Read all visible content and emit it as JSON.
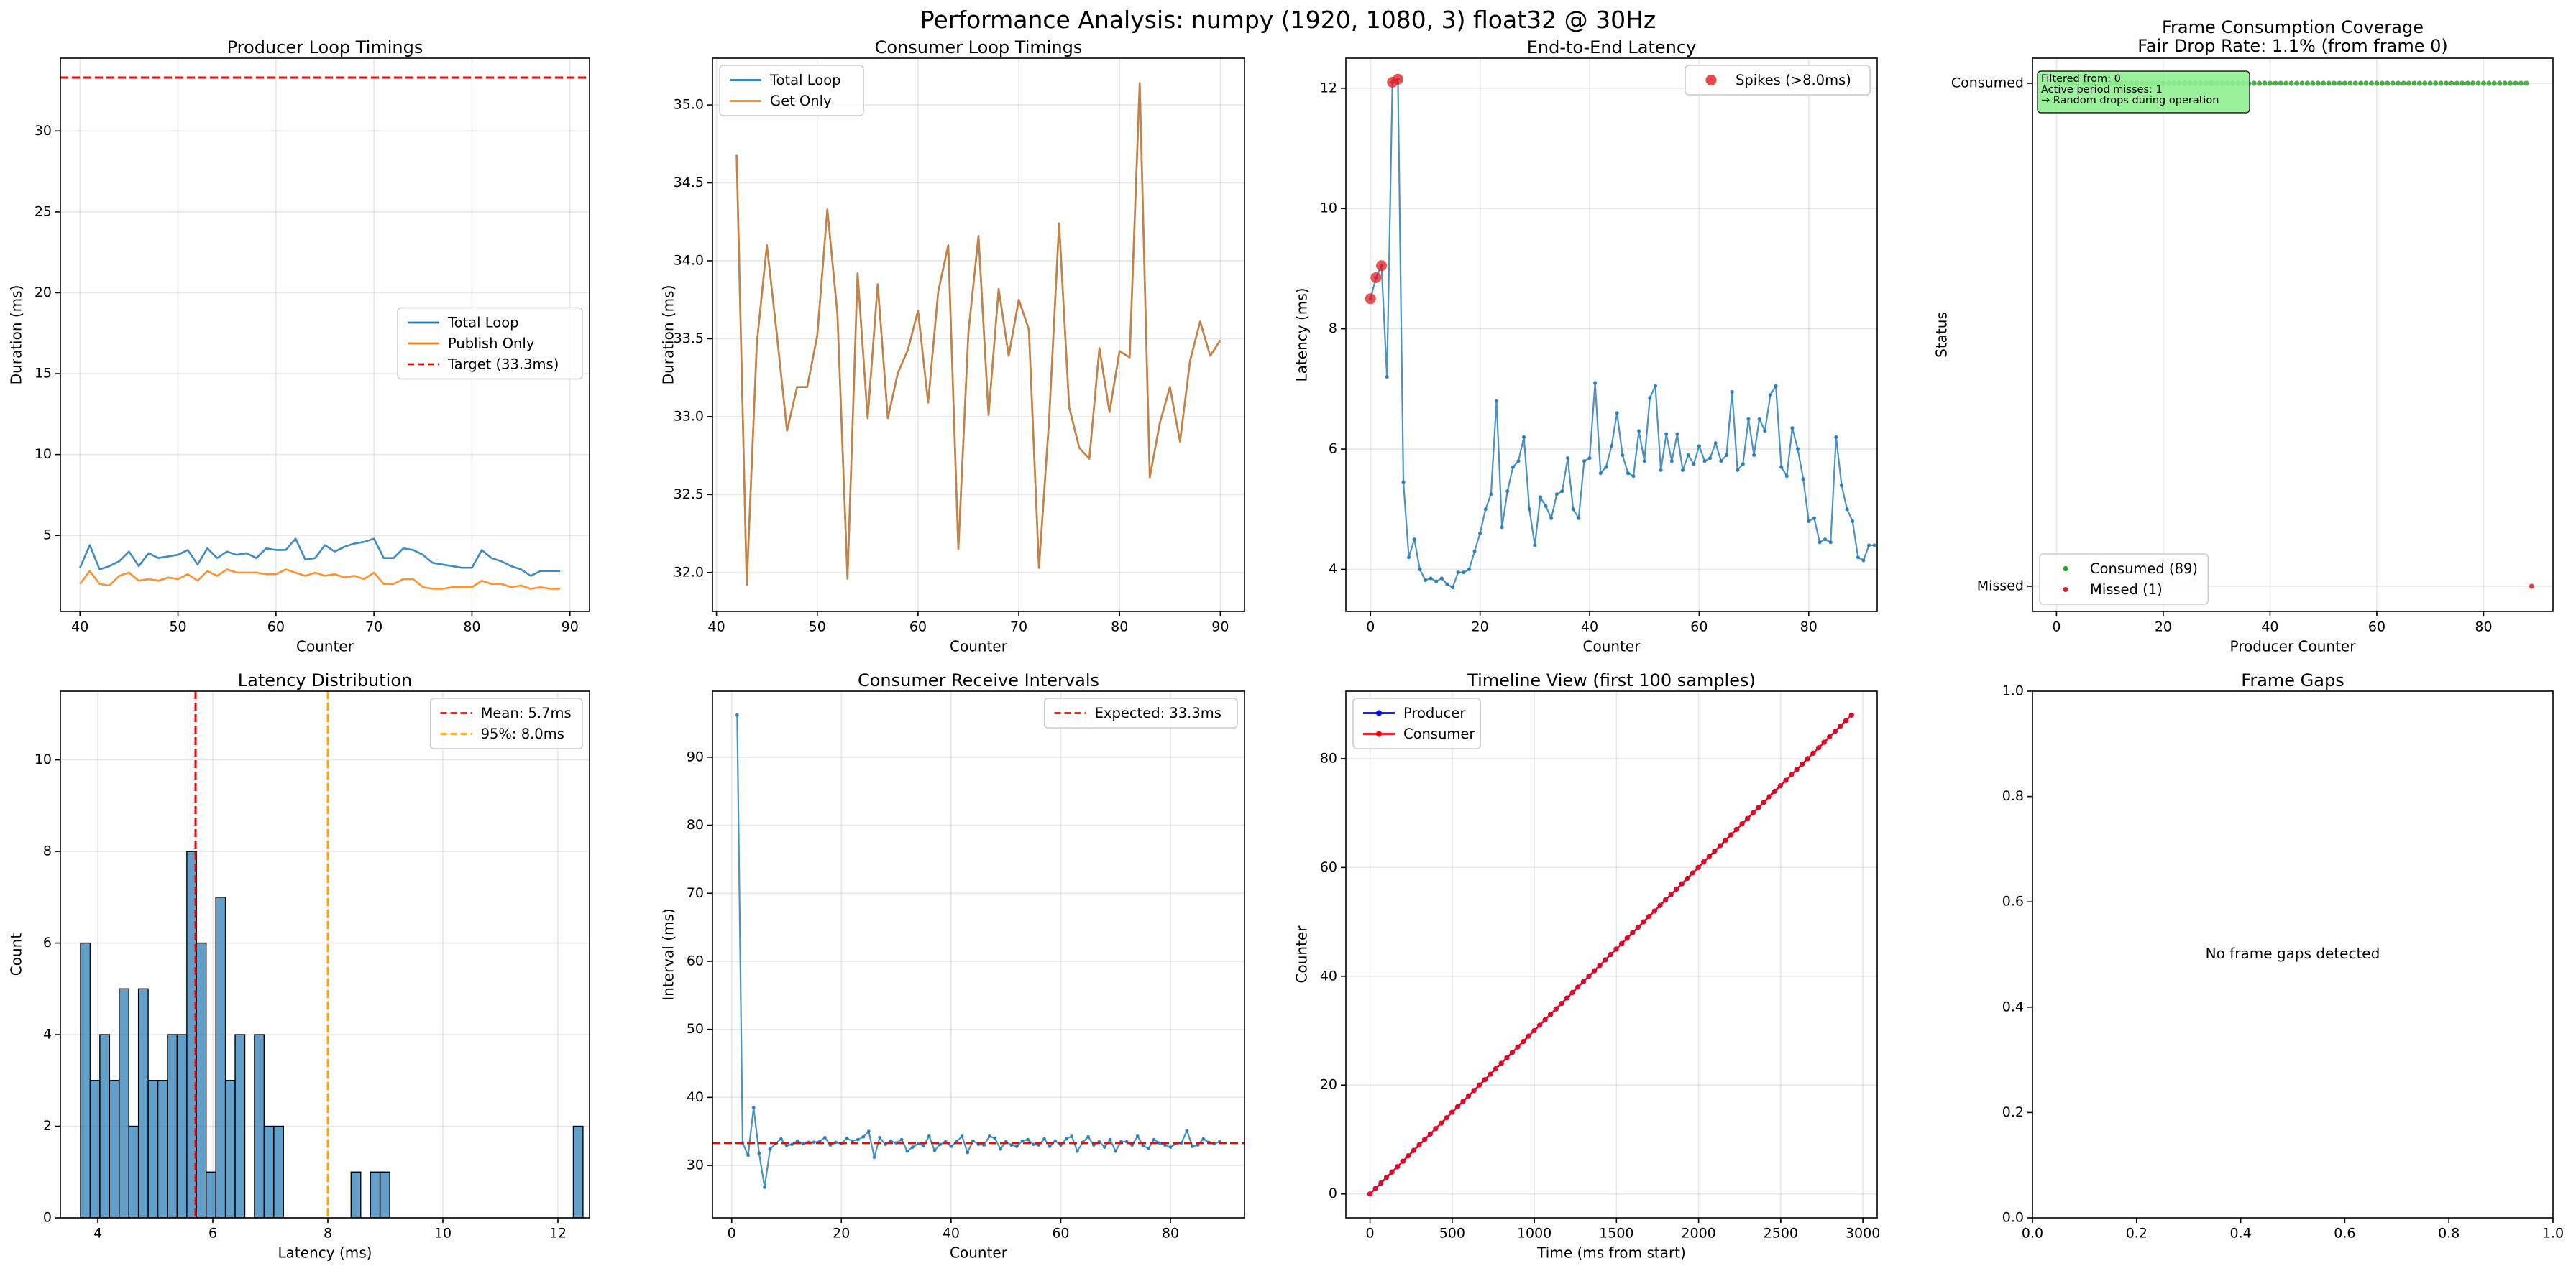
{
  "figure": {
    "suptitle": "Performance Analysis: numpy (1920, 1080, 3) float32 @ 30Hz"
  },
  "chart_data": [
    {
      "id": "producer",
      "type": "line",
      "title": "Producer Loop Timings",
      "xlabel": "Counter",
      "ylabel": "Duration (ms)",
      "xlim": [
        38,
        92
      ],
      "ylim": [
        0.3,
        34.5
      ],
      "xticks": [
        40,
        50,
        60,
        70,
        80,
        90
      ],
      "yticks": [
        5,
        10,
        15,
        20,
        25,
        30
      ],
      "grid": true,
      "legend_position": "center-right",
      "x": [
        40,
        41,
        42,
        43,
        44,
        45,
        46,
        47,
        48,
        49,
        50,
        51,
        52,
        53,
        54,
        55,
        56,
        57,
        58,
        59,
        60,
        61,
        62,
        63,
        64,
        65,
        66,
        67,
        68,
        69,
        70,
        71,
        72,
        73,
        74,
        75,
        76,
        77,
        78,
        79,
        80,
        81,
        82,
        83,
        84,
        85,
        86,
        87,
        88,
        89
      ],
      "series": [
        {
          "name": "Total Loop",
          "color": "#1f77b4",
          "values": [
            3.0,
            4.4,
            2.9,
            3.1,
            3.4,
            4.0,
            3.1,
            3.9,
            3.6,
            3.7,
            3.8,
            4.1,
            3.2,
            4.2,
            3.6,
            4.0,
            3.8,
            3.9,
            3.6,
            4.2,
            4.1,
            4.1,
            4.8,
            3.5,
            3.6,
            4.4,
            4.0,
            4.3,
            4.5,
            4.6,
            4.8,
            3.6,
            3.6,
            4.2,
            4.1,
            3.8,
            3.3,
            3.2,
            3.1,
            3.0,
            3.0,
            4.1,
            3.6,
            3.4,
            3.1,
            2.9,
            2.5,
            2.8,
            2.8,
            2.8
          ]
        },
        {
          "name": "Publish Only",
          "color": "#ff7f0e",
          "values": [
            2.0,
            2.8,
            2.0,
            1.9,
            2.5,
            2.7,
            2.2,
            2.3,
            2.2,
            2.4,
            2.3,
            2.6,
            2.2,
            2.8,
            2.5,
            2.9,
            2.7,
            2.7,
            2.7,
            2.6,
            2.6,
            2.9,
            2.7,
            2.5,
            2.7,
            2.5,
            2.6,
            2.4,
            2.5,
            2.3,
            2.7,
            2.0,
            2.0,
            2.3,
            2.3,
            1.8,
            1.7,
            1.7,
            1.8,
            1.8,
            1.8,
            2.2,
            2.0,
            2.0,
            1.8,
            1.9,
            1.7,
            1.8,
            1.7,
            1.7
          ]
        }
      ],
      "hlines": [
        {
          "name": "Target (33.3ms)",
          "y": 33.3,
          "color": "#ff0000",
          "dashed": true
        }
      ]
    },
    {
      "id": "consumer",
      "type": "line",
      "title": "Consumer Loop Timings",
      "xlabel": "Counter",
      "ylabel": "Duration (ms)",
      "xlim": [
        39.6,
        92.4
      ],
      "ylim": [
        31.75,
        35.3
      ],
      "xticks": [
        40,
        50,
        60,
        70,
        80,
        90
      ],
      "yticks": [
        32.0,
        32.5,
        33.0,
        33.5,
        34.0,
        34.5,
        35.0
      ],
      "ytick_labels": [
        "32.0",
        "32.5",
        "33.0",
        "33.5",
        "34.0",
        "34.5",
        "35.0"
      ],
      "grid": true,
      "legend_position": "top-left",
      "x": [
        42,
        43,
        44,
        45,
        46,
        47,
        48,
        49,
        50,
        51,
        52,
        53,
        54,
        55,
        56,
        57,
        58,
        59,
        60,
        61,
        62,
        63,
        64,
        65,
        66,
        67,
        68,
        69,
        70,
        71,
        72,
        73,
        74,
        75,
        76,
        77,
        78,
        79,
        80,
        81,
        82,
        83,
        84,
        85,
        86,
        87,
        88,
        89,
        90
      ],
      "series": [
        {
          "name": "Total Loop",
          "color": "#1f77b4",
          "values": [
            34.68,
            31.92,
            33.47,
            34.1,
            33.52,
            32.91,
            33.19,
            33.19,
            33.52,
            34.33,
            33.66,
            31.96,
            33.92,
            32.99,
            33.85,
            32.99,
            33.28,
            33.43,
            33.68,
            33.09,
            33.8,
            34.1,
            32.15,
            33.54,
            34.16,
            33.01,
            33.82,
            33.39,
            33.75,
            33.56,
            32.03,
            32.97,
            34.24,
            33.06,
            32.8,
            32.73,
            33.44,
            33.03,
            33.42,
            33.38,
            35.14,
            32.61,
            32.96,
            33.19,
            32.84,
            33.36,
            33.61,
            33.39,
            33.49
          ]
        },
        {
          "name": "Get Only",
          "color": "#ff7f0e",
          "values": [
            34.68,
            31.92,
            33.47,
            34.1,
            33.52,
            32.91,
            33.19,
            33.19,
            33.52,
            34.33,
            33.66,
            31.96,
            33.92,
            32.99,
            33.85,
            32.99,
            33.28,
            33.43,
            33.68,
            33.09,
            33.8,
            34.1,
            32.15,
            33.54,
            34.16,
            33.01,
            33.82,
            33.39,
            33.75,
            33.56,
            32.03,
            32.97,
            34.24,
            33.06,
            32.8,
            32.73,
            33.44,
            33.03,
            33.42,
            33.38,
            35.14,
            32.61,
            32.96,
            33.19,
            32.84,
            33.36,
            33.61,
            33.39,
            33.49
          ]
        }
      ]
    },
    {
      "id": "latency",
      "type": "line",
      "title": "End-to-End Latency",
      "xlabel": "Counter",
      "ylabel": "Latency (ms)",
      "xlim": [
        -4.5,
        92.5
      ],
      "ylim": [
        3.3,
        12.5
      ],
      "xticks": [
        0,
        20,
        40,
        60,
        80
      ],
      "yticks": [
        4,
        6,
        8,
        10,
        12
      ],
      "grid": true,
      "legend_position": "top-right",
      "series": [
        {
          "name": "Latency",
          "color": "#1f77b4",
          "values": [
            8.5,
            8.85,
            9.05,
            7.2,
            12.1,
            12.15,
            5.45,
            4.2,
            4.5,
            4.0,
            3.82,
            3.85,
            3.8,
            3.85,
            3.75,
            3.7,
            3.95,
            3.95,
            4.0,
            4.3,
            4.6,
            5.0,
            5.25,
            6.8,
            4.7,
            5.3,
            5.7,
            5.8,
            6.2,
            5.0,
            4.4,
            5.2,
            5.05,
            4.85,
            5.25,
            5.3,
            5.85,
            5.0,
            4.85,
            5.8,
            5.85,
            7.1,
            5.6,
            5.7,
            6.05,
            6.6,
            5.9,
            5.6,
            5.55,
            6.3,
            5.8,
            6.85,
            7.05,
            5.65,
            6.25,
            5.8,
            6.25,
            5.65,
            5.9,
            5.75,
            6.05,
            5.8,
            5.85,
            6.1,
            5.8,
            5.9,
            6.95,
            5.65,
            5.75,
            6.5,
            5.9,
            6.5,
            6.3,
            6.9,
            7.05,
            5.7,
            5.55,
            6.35,
            6.0,
            5.5,
            4.8,
            4.85,
            4.45,
            4.5,
            4.45,
            6.2,
            5.4,
            5.0,
            4.8,
            4.2,
            4.15,
            4.4,
            4.4
          ]
        }
      ],
      "spikes": {
        "name": "Spikes (>8.0ms)",
        "color": "#e31a1c",
        "x": [
          0,
          1,
          2,
          4,
          5
        ],
        "y": [
          8.5,
          8.85,
          9.05,
          12.1,
          12.15
        ]
      }
    },
    {
      "id": "coverage",
      "type": "scatter",
      "title": "Frame Consumption Coverage",
      "subtitle": "Fair Drop Rate: 1.1% (from frame 0)",
      "xlabel": "Producer Counter",
      "ylabel": "Status",
      "xlim": [
        -4.5,
        93
      ],
      "ylim": [
        -0.05,
        1.05
      ],
      "xticks": [
        0,
        20,
        40,
        60,
        80
      ],
      "ytick_values": [
        0,
        1
      ],
      "ytick_labels": [
        "Missed",
        "Consumed"
      ],
      "grid": true,
      "legend_position": "bottom-left",
      "consumed": {
        "name": "Consumed (89)",
        "color": "#2ca02c",
        "count": 89
      },
      "missed": {
        "name": "Missed (1)",
        "color": "#d62728",
        "x": [
          89
        ]
      },
      "annotation": [
        "Filtered from: 0",
        "Active period misses: 1",
        "→ Random drops during operation"
      ],
      "annotation_color": "#90ee90"
    },
    {
      "id": "latency_hist",
      "type": "bar",
      "title": "Latency Distribution",
      "xlabel": "Latency (ms)",
      "ylabel": "Count",
      "xlim": [
        3.35,
        12.55
      ],
      "ylim": [
        0,
        11.5
      ],
      "xticks": [
        4,
        6,
        8,
        10,
        12
      ],
      "yticks": [
        0,
        2,
        4,
        6,
        8,
        10
      ],
      "grid": true,
      "legend_position": "top-right",
      "bar_color": "#1f77b4",
      "bin_start": 3.7,
      "bin_width": 0.168,
      "counts": [
        6,
        3,
        4,
        3,
        5,
        2,
        5,
        3,
        3,
        4,
        4,
        8,
        6,
        1,
        7,
        3,
        4,
        0,
        4,
        2,
        2,
        0,
        0,
        0,
        0,
        0,
        0,
        0,
        1,
        0,
        1,
        1,
        0,
        0,
        0,
        0,
        0,
        0,
        0,
        0,
        0,
        0,
        0,
        0,
        0,
        0,
        0,
        0,
        0,
        0,
        0,
        2
      ],
      "vlines": [
        {
          "name": "Mean: 5.7ms",
          "x": 5.7,
          "color": "#ff0000"
        },
        {
          "name": "95%: 8.0ms",
          "x": 8.0,
          "color": "#ffa500"
        }
      ]
    },
    {
      "id": "intervals",
      "type": "line",
      "title": "Consumer Receive Intervals",
      "xlabel": "Counter",
      "ylabel": "Interval (ms)",
      "xlim": [
        -3.5,
        93.5
      ],
      "ylim": [
        22.3,
        99.7
      ],
      "xticks": [
        0,
        20,
        40,
        60,
        80
      ],
      "yticks": [
        30,
        40,
        50,
        60,
        70,
        80,
        90
      ],
      "grid": true,
      "legend_position": "top-right",
      "series": [
        {
          "name": "Intervals",
          "color": "#1f77b4",
          "values": [
            96.2,
            33.3,
            31.5,
            38.5,
            31.8,
            26.8,
            32.4,
            33.2,
            33.9,
            32.9,
            33.1,
            33.6,
            33.2,
            33.4,
            33.4,
            33.5,
            34.1,
            33.0,
            33.4,
            33.2,
            34.0,
            33.6,
            33.8,
            34.2,
            35.0,
            31.2,
            34.1,
            33.1,
            33.6,
            33.3,
            33.8,
            32.1,
            32.7,
            33.2,
            32.9,
            34.3,
            32.2,
            33.1,
            33.5,
            32.8,
            33.5,
            34.3,
            31.9,
            33.6,
            33.1,
            33.0,
            34.3,
            34.0,
            32.4,
            33.5,
            33.0,
            32.8,
            33.6,
            33.8,
            33.1,
            33.0,
            33.9,
            32.8,
            33.6,
            33.0,
            33.9,
            34.3,
            32.1,
            33.4,
            34.2,
            33.0,
            33.5,
            32.7,
            33.8,
            32.1,
            33.5,
            33.5,
            33.0,
            34.3,
            32.9,
            32.5,
            33.8,
            33.3,
            33.0,
            32.7,
            33.2,
            33.3,
            35.1,
            32.8,
            33.0,
            33.9,
            33.4,
            33.2,
            33.5
          ]
        }
      ],
      "hlines": [
        {
          "name": "Expected: 33.3ms",
          "y": 33.3,
          "color": "#ff0000",
          "dashed": true
        }
      ]
    },
    {
      "id": "timeline",
      "type": "line",
      "title": "Timeline View (first 100 samples)",
      "xlabel": "Time (ms from start)",
      "ylabel": "Counter",
      "xlim": [
        -147,
        3087
      ],
      "ylim": [
        -4.4,
        92.4
      ],
      "xticks": [
        0,
        500,
        1000,
        1500,
        2000,
        2500,
        3000
      ],
      "yticks": [
        0,
        20,
        40,
        60,
        80
      ],
      "grid": true,
      "legend_position": "top-left",
      "samples": 89,
      "interval_ms": 33.3,
      "series": [
        {
          "name": "Producer",
          "color": "#0000ff"
        },
        {
          "name": "Consumer",
          "color": "#ff0000"
        }
      ]
    },
    {
      "id": "gaps",
      "type": "scatter",
      "title": "Frame Gaps",
      "xlim": [
        0,
        1
      ],
      "ylim": [
        0,
        1
      ],
      "xticks": [
        0.0,
        0.2,
        0.4,
        0.6,
        0.8,
        1.0
      ],
      "yticks": [
        0.0,
        0.2,
        0.4,
        0.6,
        0.8,
        1.0
      ],
      "tick_labels": [
        "0.0",
        "0.2",
        "0.4",
        "0.6",
        "0.8",
        "1.0"
      ],
      "message": "No frame gaps detected"
    }
  ]
}
